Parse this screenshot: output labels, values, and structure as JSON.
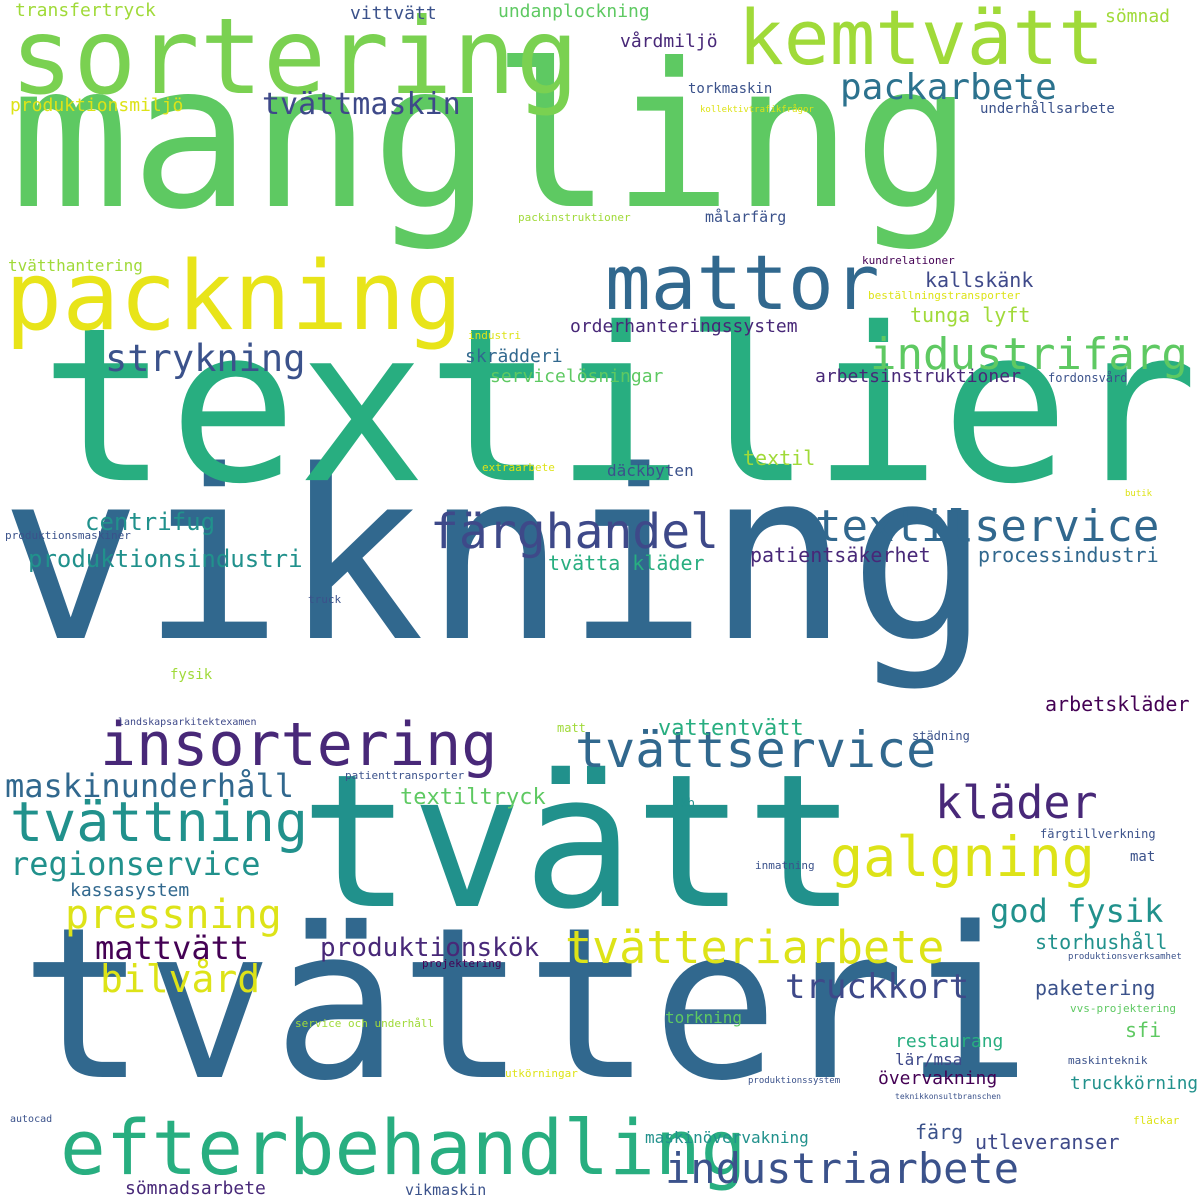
{
  "colors": {
    "background": "#ffffff",
    "light_green": "#a0da39",
    "green": "#5ec962",
    "teal_green": "#28ae80",
    "teal": "#21918c",
    "blue": "#31688e",
    "indigo": "#3b528b",
    "purple": "#440154",
    "yellow": "#dde318",
    "pale_yellow": "#e8e419"
  },
  "words": [
    {
      "text": "vikning",
      "color": "#31688e"
    },
    {
      "text": "textilier",
      "color": "#28ae80"
    },
    {
      "text": "mangling",
      "color": "#5ec962"
    },
    {
      "text": "tvätteri",
      "color": "#31688e"
    },
    {
      "text": "tvätt",
      "color": "#21918c"
    },
    {
      "text": "sortering",
      "color": "#7ad151"
    },
    {
      "text": "kemtvätt",
      "color": "#a0da39"
    },
    {
      "text": "packning",
      "color": "#e8e419"
    },
    {
      "text": "mattor",
      "color": "#31688e"
    },
    {
      "text": "efterbehandling",
      "color": "#28ae80"
    },
    {
      "text": "insortering",
      "color": "#482878"
    },
    {
      "text": "tvättservice",
      "color": "#31688e"
    },
    {
      "text": "tvättning",
      "color": "#21918c"
    },
    {
      "text": "galgning",
      "color": "#dde318"
    },
    {
      "text": "färghandel",
      "color": "#3e4989"
    },
    {
      "text": "textilservice",
      "color": "#31688e"
    },
    {
      "text": "industrifärg",
      "color": "#5ec962"
    },
    {
      "text": "industriarbete",
      "color": "#3b528b"
    },
    {
      "text": "tvätteriarbete",
      "color": "#dde318"
    },
    {
      "text": "kläder",
      "color": "#482878"
    },
    {
      "text": "pressning",
      "color": "#dde318"
    },
    {
      "text": "strykning",
      "color": "#3b528b"
    },
    {
      "text": "packarbete",
      "color": "#2c728e"
    },
    {
      "text": "tvättmaskin",
      "color": "#3e4989"
    },
    {
      "text": "maskinunderhåll",
      "color": "#31688e"
    },
    {
      "text": "regionservice",
      "color": "#21918c"
    },
    {
      "text": "bilvård",
      "color": "#dde318"
    },
    {
      "text": "mattvätt",
      "color": "#440154"
    },
    {
      "text": "god fysik",
      "color": "#21918c"
    },
    {
      "text": "truckkort",
      "color": "#3e4989"
    },
    {
      "text": "produktionskök",
      "color": "#482878"
    },
    {
      "text": "centrifug",
      "color": "#21918c"
    },
    {
      "text": "produktionsindustri",
      "color": "#21918c"
    },
    {
      "text": "textiltryck",
      "color": "#5ec962"
    },
    {
      "text": "vattentvätt",
      "color": "#28ae80"
    },
    {
      "text": "patientsäkerhet",
      "color": "#482878"
    },
    {
      "text": "processindustri",
      "color": "#31688e"
    },
    {
      "text": "tvätta kläder",
      "color": "#28ae80"
    },
    {
      "text": "orderhanteringssystem",
      "color": "#482878"
    },
    {
      "text": "tunga lyft",
      "color": "#a0da39"
    },
    {
      "text": "kallskänk",
      "color": "#3e4989"
    },
    {
      "text": "skrädderi",
      "color": "#31688e"
    },
    {
      "text": "servicelösningar",
      "color": "#5ec962"
    },
    {
      "text": "arbetsinstruktioner",
      "color": "#482878"
    },
    {
      "text": "däckbyten",
      "color": "#3b528b"
    },
    {
      "text": "textil",
      "color": "#a0da39"
    },
    {
      "text": "arbetskläder",
      "color": "#440154"
    },
    {
      "text": "kassasystem",
      "color": "#31688e"
    },
    {
      "text": "storhushåll",
      "color": "#21918c"
    },
    {
      "text": "paketering",
      "color": "#3b528b"
    },
    {
      "text": "sfi",
      "color": "#5ec962"
    },
    {
      "text": "restaurang",
      "color": "#28ae80"
    },
    {
      "text": "lär/msa",
      "color": "#3e4989"
    },
    {
      "text": "övervakning",
      "color": "#440154"
    },
    {
      "text": "truckkörning",
      "color": "#21918c"
    },
    {
      "text": "utleveranser",
      "color": "#3e4989"
    },
    {
      "text": "färg",
      "color": "#3b528b"
    },
    {
      "text": "maskinövervakning",
      "color": "#21918c"
    },
    {
      "text": "sömnadsarbete",
      "color": "#482878"
    },
    {
      "text": "vikmaskin",
      "color": "#3b528b"
    },
    {
      "text": "torkning",
      "color": "#5ec962"
    },
    {
      "text": "transfertryck",
      "color": "#a0da39"
    },
    {
      "text": "vittvätt",
      "color": "#3b528b"
    },
    {
      "text": "undanplockning",
      "color": "#5ec962"
    },
    {
      "text": "vårdmiljö",
      "color": "#482878"
    },
    {
      "text": "sömnad",
      "color": "#a0da39"
    },
    {
      "text": "produktionsmiljö",
      "color": "#dde318"
    },
    {
      "text": "torkmaskin",
      "color": "#3b528b"
    },
    {
      "text": "underhållsarbete",
      "color": "#3b528b"
    },
    {
      "text": "kollektivtrafikfrågor",
      "color": "#dde318"
    },
    {
      "text": "packinstruktioner",
      "color": "#a0da39"
    },
    {
      "text": "målarfärg",
      "color": "#3b528b"
    },
    {
      "text": "tvätthantering",
      "color": "#a0da39"
    },
    {
      "text": "kundrelationer",
      "color": "#440154"
    },
    {
      "text": "beställningstransporter",
      "color": "#dde318"
    },
    {
      "text": "industri",
      "color": "#dde318"
    },
    {
      "text": "fordonsvård",
      "color": "#3b528b"
    },
    {
      "text": "extraarbete",
      "color": "#dde318"
    },
    {
      "text": "butik",
      "color": "#dde318"
    },
    {
      "text": "produktionsmaskiner",
      "color": "#3b528b"
    },
    {
      "text": "truck",
      "color": "#3b528b"
    },
    {
      "text": "fysik",
      "color": "#a0da39"
    },
    {
      "text": "landskapsarkitektexamen",
      "color": "#3e4989"
    },
    {
      "text": "matt",
      "color": "#a0da39"
    },
    {
      "text": "städning",
      "color": "#3b528b"
    },
    {
      "text": "patienttransporter",
      "color": "#3b528b"
    },
    {
      "text": "ykb",
      "color": "#21918c"
    },
    {
      "text": "färgtillverkning",
      "color": "#3b528b"
    },
    {
      "text": "mat",
      "color": "#3b528b"
    },
    {
      "text": "inmatning",
      "color": "#3b528b"
    },
    {
      "text": "projektering",
      "color": "#440154"
    },
    {
      "text": "produktionsverksamhet",
      "color": "#3b528b"
    },
    {
      "text": "service och underhåll",
      "color": "#a0da39"
    },
    {
      "text": "vvs-projektering",
      "color": "#5ec962"
    },
    {
      "text": "utkörningar",
      "color": "#dde318"
    },
    {
      "text": "maskinteknik",
      "color": "#3b528b"
    },
    {
      "text": "produktionssystem",
      "color": "#3b528b"
    },
    {
      "text": "teknikkonsultbranschen",
      "color": "#3b528b"
    },
    {
      "text": "autocad",
      "color": "#3b528b"
    },
    {
      "text": "fläckar",
      "color": "#dde318"
    }
  ]
}
